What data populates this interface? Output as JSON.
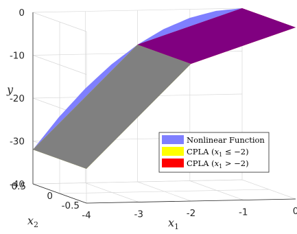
{
  "chart_data": {
    "type": "surface",
    "xlabel": "x",
    "xlabel_sub": "1",
    "ylabel": "x",
    "ylabel_sub": "2",
    "zlabel": "y",
    "x_ticks": [
      "-4",
      "-3",
      "-2",
      "-1",
      "0"
    ],
    "y_ticks": [
      "-0.5",
      "0",
      "0.5"
    ],
    "z_ticks": [
      "0",
      "-10",
      "-20",
      "-30",
      "-40"
    ],
    "xlim": [
      -4,
      0
    ],
    "ylim": [
      -0.5,
      0.5
    ],
    "zlim": [
      -40,
      0
    ],
    "grid": true,
    "legend_position": "bottom-right",
    "series": [
      {
        "name": "Nonlinear Function",
        "color": "#7f7fff",
        "x": [
          -4,
          -3.5,
          -3,
          -2.5,
          -2,
          -1.5,
          -1,
          -0.5,
          0
        ],
        "z": [
          -32,
          -24.5,
          -18,
          -12.5,
          -8,
          -4.5,
          -2,
          -0.5,
          0
        ]
      },
      {
        "name": "CPLA (x₁ ≤ −2)",
        "color": "#ffff00",
        "x": [
          -4,
          -2
        ],
        "z": [
          -32,
          -8
        ]
      },
      {
        "name": "CPLA (x₁ > −2)",
        "color": "#ff0000",
        "x": [
          -2,
          0
        ],
        "z": [
          -8,
          0
        ]
      }
    ],
    "legend": {
      "items": [
        {
          "label_text": "Nonlinear Function",
          "label_html": ""
        },
        {
          "label_prefix": "CPLA (",
          "label_var": "x",
          "label_sub": "1",
          "label_rel": " ≤ −2)"
        },
        {
          "label_prefix": "CPLA (",
          "label_var": "x",
          "label_sub": "1",
          "label_rel": " > −2)"
        }
      ]
    }
  }
}
